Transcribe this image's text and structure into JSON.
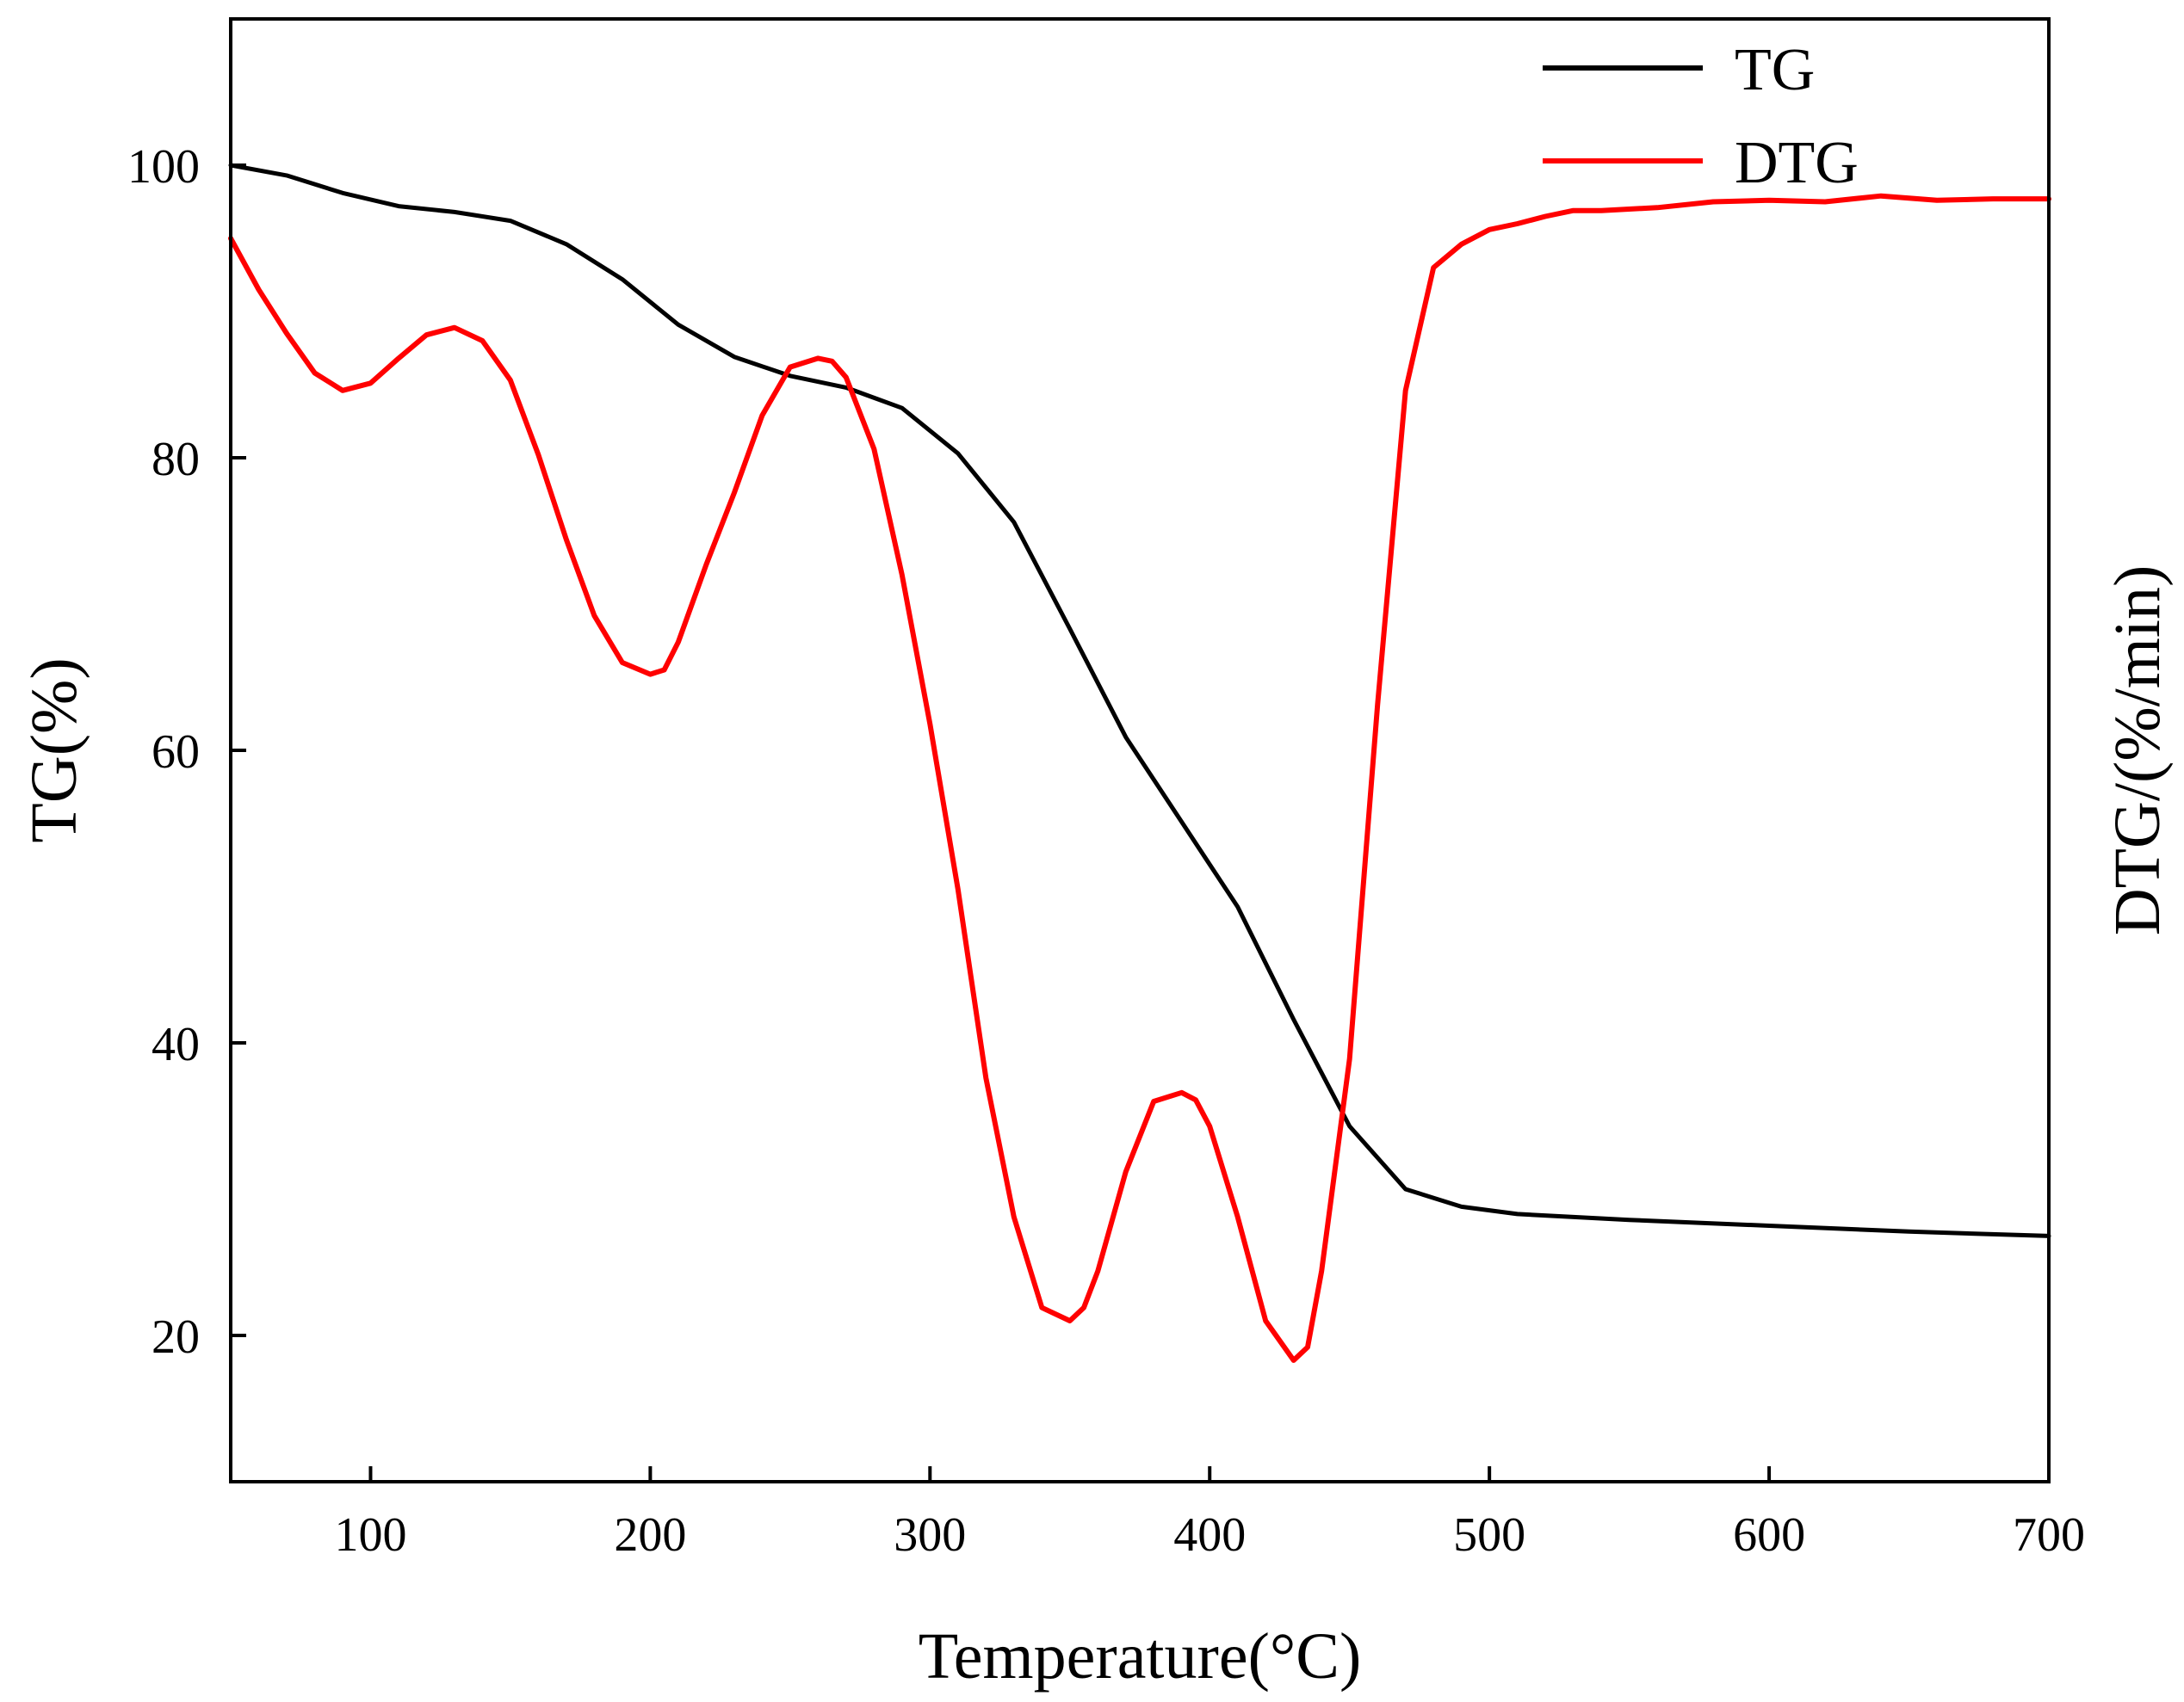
{
  "chart_data": {
    "type": "line",
    "xlabel": "Temperature(°C)",
    "ylabel_left": "TG(%)",
    "ylabel_right": "DTG/(%/min)",
    "xlim": [
      50,
      700
    ],
    "ylim": [
      10,
      110
    ],
    "x_ticks": [
      100,
      200,
      300,
      400,
      500,
      600,
      700
    ],
    "y_ticks": [
      20,
      40,
      60,
      80,
      100
    ],
    "dtg_scale_note": "right axis has no numeric ticks; DTG curve plotted in left-axis units",
    "legend_position": "top-right",
    "series": [
      {
        "name": "TG",
        "color": "#000000",
        "x": [
          50,
          70,
          90,
          110,
          130,
          150,
          170,
          190,
          210,
          230,
          250,
          270,
          290,
          310,
          330,
          350,
          370,
          390,
          410,
          430,
          450,
          470,
          490,
          510,
          550,
          600,
          650,
          700
        ],
        "y": [
          100,
          99.3,
          98.1,
          97.2,
          96.8,
          96.2,
          94.6,
          92.2,
          89.1,
          86.9,
          85.6,
          84.8,
          83.4,
          80.3,
          75.6,
          68.3,
          60.9,
          55.1,
          49.3,
          41.6,
          34.3,
          30.0,
          28.8,
          28.3,
          27.9,
          27.5,
          27.1,
          26.8
        ]
      },
      {
        "name": "DTG",
        "color": "#ff0000",
        "x": [
          50,
          60,
          70,
          80,
          90,
          100,
          110,
          120,
          130,
          140,
          150,
          160,
          170,
          180,
          190,
          200,
          205,
          210,
          220,
          230,
          240,
          250,
          260,
          265,
          270,
          280,
          290,
          300,
          310,
          320,
          330,
          340,
          350,
          355,
          360,
          370,
          380,
          390,
          395,
          400,
          410,
          420,
          430,
          435,
          440,
          450,
          460,
          470,
          480,
          490,
          500,
          510,
          520,
          530,
          540,
          560,
          580,
          600,
          620,
          640,
          660,
          680,
          700
        ],
        "y": [
          95,
          91.5,
          88.5,
          85.8,
          84.6,
          85.1,
          86.8,
          88.4,
          88.9,
          88.0,
          85.3,
          80.2,
          74.4,
          69.2,
          66.0,
          65.2,
          65.5,
          67.4,
          72.7,
          77.6,
          82.9,
          86.2,
          86.8,
          86.6,
          85.5,
          80.6,
          72.0,
          61.8,
          50.5,
          37.6,
          28.1,
          21.9,
          21.0,
          21.9,
          24.4,
          31.2,
          36.0,
          36.6,
          36.1,
          34.3,
          28.1,
          21.0,
          18.3,
          19.2,
          24.4,
          38.9,
          63.1,
          84.6,
          93.0,
          94.6,
          95.6,
          96.0,
          96.5,
          96.9,
          96.9,
          97.1,
          97.5,
          97.6,
          97.5,
          97.9,
          97.6,
          97.7,
          97.7
        ]
      }
    ]
  }
}
